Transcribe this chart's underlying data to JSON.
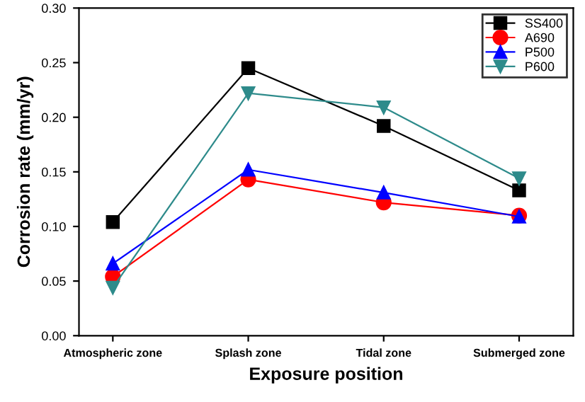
{
  "chart_data": {
    "type": "line",
    "xlabel": "Exposure position",
    "ylabel": "Corrosion rate (mm/yr)",
    "categories": [
      "Atmospheric zone",
      "Splash zone",
      "Tidal zone",
      "Submerged zone"
    ],
    "series": [
      {
        "name": "SS400",
        "color": "#000000",
        "marker": "square",
        "values": [
          0.104,
          0.245,
          0.192,
          0.133
        ]
      },
      {
        "name": "A690",
        "color": "#ff0000",
        "marker": "circle",
        "values": [
          0.054,
          0.143,
          0.122,
          0.11
        ]
      },
      {
        "name": "P500",
        "color": "#0000ff",
        "marker": "triangle",
        "values": [
          0.066,
          0.152,
          0.131,
          0.109
        ]
      },
      {
        "name": "P600",
        "color": "#2e8b8b",
        "marker": "triangle_down",
        "values": [
          0.044,
          0.222,
          0.209,
          0.144
        ]
      }
    ],
    "ylim": [
      0,
      0.3
    ],
    "yticks": [
      {
        "value": 0,
        "label": "0.00"
      },
      0.05,
      {
        "value": 0.1,
        "label": "0.10"
      },
      0.15,
      {
        "value": 0.2,
        "label": "0.20"
      },
      0.25,
      {
        "value": 0.3,
        "label": "0.30"
      }
    ],
    "legend": "top right",
    "grid": false,
    "line_style": "solid"
  }
}
